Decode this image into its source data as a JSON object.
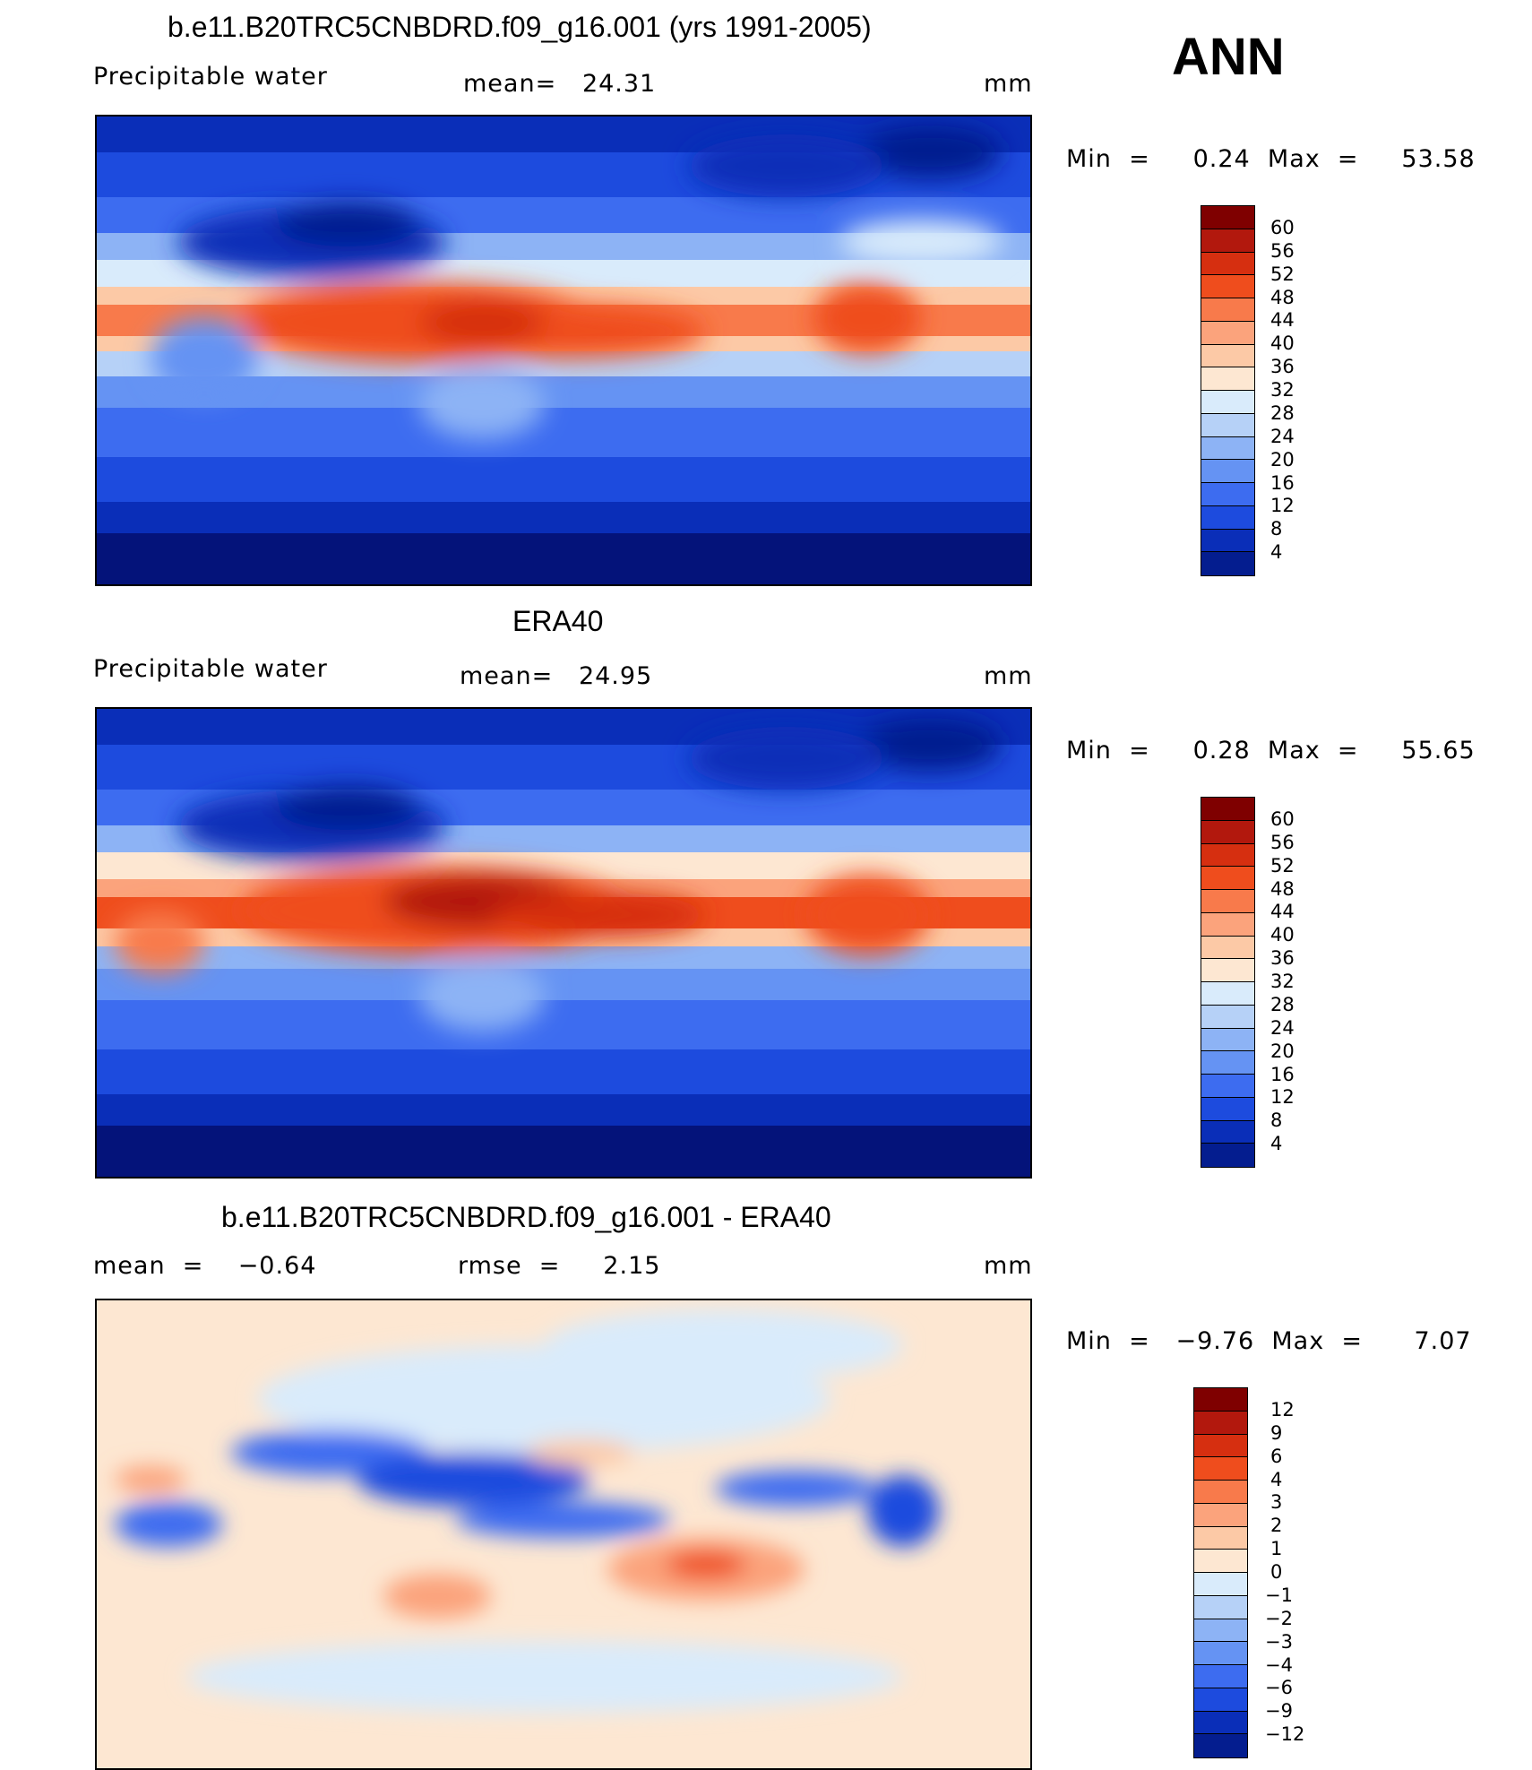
{
  "season": "ANN",
  "chart_data": [
    {
      "type": "heatmap",
      "title": "b.e11.B20TRC5CNBDRD.f09_g16.001 (yrs 1991-2005)",
      "field_label": "Precipitable water",
      "stat_text": "mean=   24.31",
      "units": "mm",
      "min_max_text": "Min  =     0.24  Max  =     53.58",
      "mean": 24.31,
      "min": 0.24,
      "max": 53.58,
      "colorbar_levels": [
        "60",
        "56",
        "52",
        "48",
        "44",
        "40",
        "36",
        "32",
        "28",
        "24",
        "20",
        "16",
        "12",
        "8",
        "4"
      ],
      "colorbar_colors": [
        "#7f0000",
        "#b2180d",
        "#d62f10",
        "#ef4d1d",
        "#f87a4b",
        "#fba37c",
        "#fcc9a6",
        "#fde7d2",
        "#d9ebfb",
        "#b6d1f7",
        "#8db3f5",
        "#6593f3",
        "#3d6cf0",
        "#1d4bde",
        "#0a2eb8",
        "#041d8f"
      ]
    },
    {
      "type": "heatmap",
      "title": "ERA40",
      "field_label": "Precipitable water",
      "stat_text": "mean=   24.95",
      "units": "mm",
      "min_max_text": "Min  =     0.28  Max  =     55.65",
      "mean": 24.95,
      "min": 0.28,
      "max": 55.65,
      "colorbar_levels": [
        "60",
        "56",
        "52",
        "48",
        "44",
        "40",
        "36",
        "32",
        "28",
        "24",
        "20",
        "16",
        "12",
        "8",
        "4"
      ],
      "colorbar_colors": [
        "#7f0000",
        "#b2180d",
        "#d62f10",
        "#ef4d1d",
        "#f87a4b",
        "#fba37c",
        "#fcc9a6",
        "#fde7d2",
        "#d9ebfb",
        "#b6d1f7",
        "#8db3f5",
        "#6593f3",
        "#3d6cf0",
        "#1d4bde",
        "#0a2eb8",
        "#041d8f"
      ]
    },
    {
      "type": "heatmap",
      "title": "b.e11.B20TRC5CNBDRD.f09_g16.001 - ERA40",
      "field_label": "mean  =    −0.64",
      "stat_text": "rmse  =     2.15",
      "units": "mm",
      "min_max_text": "Min  =   −9.76  Max  =      7.07",
      "mean": -0.64,
      "rmse": 2.15,
      "min": -9.76,
      "max": 7.07,
      "colorbar_levels": [
        "12",
        "9",
        "6",
        "4",
        "3",
        "2",
        "1",
        "0",
        "−1",
        "−2",
        "−3",
        "−4",
        "−6",
        "−9",
        "−12"
      ],
      "colorbar_colors": [
        "#7f0000",
        "#b2180d",
        "#d62f10",
        "#ef4d1d",
        "#f87a4b",
        "#fba37c",
        "#fcc9a6",
        "#fde7d2",
        "#d9ebfb",
        "#b6d1f7",
        "#8db3f5",
        "#6593f3",
        "#3d6cf0",
        "#1d4bde",
        "#0a2eb8",
        "#041d8f"
      ]
    }
  ]
}
